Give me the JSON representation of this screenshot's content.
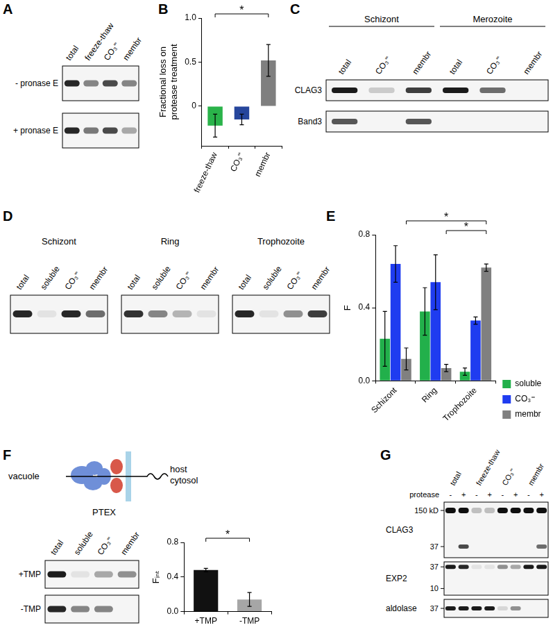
{
  "figure": {
    "panel_labels": [
      "A",
      "B",
      "C",
      "D",
      "E",
      "F",
      "G"
    ],
    "A": {
      "lanes": [
        "total",
        "freeze-thaw",
        "CO₃⁼",
        "membr"
      ],
      "rows": [
        {
          "label": "- pronase E",
          "bands": [
            0.9,
            0.5,
            0.75,
            0.5
          ]
        },
        {
          "label": "+ pronase E",
          "bands": [
            0.9,
            0.55,
            0.75,
            0.35
          ]
        }
      ]
    },
    "C": {
      "groups": [
        {
          "name": "Schizont",
          "lanes": [
            "total",
            "CO₃⁼",
            "membr"
          ]
        },
        {
          "name": "Merozoite",
          "lanes": [
            "total",
            "CO₃⁼",
            "membr"
          ]
        }
      ],
      "rows": [
        {
          "label": "CLAG3",
          "bands": [
            0.95,
            0.2,
            0.8,
            0.95,
            0.6,
            0
          ]
        },
        {
          "label": "Band3",
          "bands": [
            0.7,
            0,
            0.7,
            0,
            0,
            0
          ]
        }
      ]
    },
    "D": {
      "blots": [
        {
          "title": "Schizont",
          "lanes": [
            "total",
            "soluble",
            "CO₃⁼",
            "membr"
          ],
          "bands": [
            0.9,
            0.1,
            0.9,
            0.6
          ]
        },
        {
          "title": "Ring",
          "lanes": [
            "total",
            "soluble",
            "CO₃⁼",
            "membr"
          ],
          "bands": [
            0.85,
            0.5,
            0.3,
            0.1
          ]
        },
        {
          "title": "Trophozoite",
          "lanes": [
            "total",
            "soluble",
            "CO₃⁼",
            "membr"
          ],
          "bands": [
            0.9,
            0.1,
            0.45,
            0.8
          ]
        }
      ]
    },
    "F": {
      "diagram": {
        "left": "vacuole",
        "center": "PTEX",
        "right": [
          "host",
          "cytosol"
        ]
      },
      "lanes": [
        "total",
        "soluble",
        "CO₃⁼",
        "membr"
      ],
      "rows": [
        {
          "label": "+TMP",
          "bands": [
            0.95,
            0.1,
            0.35,
            0.45
          ]
        },
        {
          "label": "-TMP",
          "bands": [
            0.9,
            0.5,
            0.5,
            0
          ]
        }
      ]
    },
    "G": {
      "groups": [
        "total",
        "freeze-thaw",
        "CO₃⁼",
        "membr"
      ],
      "protease_label": "protease",
      "protease": [
        "-",
        "+",
        "-",
        "+",
        "-",
        "+",
        "-",
        "+"
      ],
      "rows": [
        {
          "label": "CLAG3",
          "markers": [
            {
              "label": "150 kD",
              "bands": [
                1,
                1,
                0.25,
                0.25,
                1,
                1,
                1,
                1
              ]
            },
            {
              "label": "37",
              "bands": [
                0,
                0.75,
                0,
                0,
                0,
                0,
                0,
                0.6
              ]
            }
          ]
        },
        {
          "label": "EXP2",
          "markers": [
            {
              "label": "37",
              "bands": [
                0.95,
                0.9,
                0.1,
                0.1,
                0.45,
                0.35,
                0.95,
                0.95
              ]
            },
            {
              "label": "10",
              "bands": [
                0,
                0,
                0,
                0,
                0,
                0,
                0,
                0
              ]
            }
          ]
        },
        {
          "label": "aldolase",
          "markers": [
            {
              "label": "37",
              "bands": [
                0.95,
                0.95,
                0.95,
                0.95,
                0.15,
                0.45,
                0,
                0
              ]
            }
          ]
        }
      ]
    }
  },
  "chart_data": [
    {
      "type": "bar",
      "categories": [
        "freeze-thaw",
        "CO₃⁼",
        "membr"
      ],
      "values": [
        -0.22,
        -0.15,
        0.52
      ],
      "errors": [
        0.13,
        0.06,
        0.18
      ],
      "colors": [
        "#2ab34a",
        "#26469c",
        "#7f7f7f"
      ],
      "ylabel": [
        "Fractional loss on",
        "protease treatment"
      ],
      "ylim": [
        -0.45,
        1.0
      ],
      "yticks": [
        0,
        0.5,
        {
          "value": 1,
          "label": "1.0"
        }
      ],
      "grid": false,
      "annotations": [
        {
          "text": "*",
          "between": [
            "freeze-thaw",
            "membr"
          ]
        }
      ]
    },
    {
      "type": "bar",
      "categories": [
        "Schizont",
        "Ring",
        "Trophozoite"
      ],
      "series": [
        {
          "name": "soluble",
          "color": "#22b04b",
          "values": [
            0.23,
            0.38,
            0.05
          ],
          "errors": [
            0.15,
            0.13,
            0.02
          ]
        },
        {
          "name": "CO₃⁼",
          "color": "#1f3cf0",
          "values": [
            0.64,
            0.54,
            0.33
          ],
          "errors": [
            0.1,
            0.15,
            0.02
          ]
        },
        {
          "name": "membr",
          "color": "#808080",
          "values": [
            0.12,
            0.07,
            0.62
          ],
          "errors": [
            0.06,
            0.02,
            0.02
          ]
        }
      ],
      "ylabel": "F",
      "ylim": [
        0,
        0.8
      ],
      "yticks": [
        {
          "value": 0,
          "label": "0.0"
        },
        0.4,
        0.8
      ],
      "grid": false,
      "legend": "lower right",
      "annotations": [
        {
          "text": "*",
          "between": [
            [
              "Schizont",
              "membr"
            ],
            [
              "Trophozoite",
              "membr"
            ]
          ]
        },
        {
          "text": "*",
          "between": [
            [
              "Ring",
              "membr"
            ],
            [
              "Trophozoite",
              "membr"
            ]
          ]
        }
      ]
    },
    {
      "type": "bar",
      "categories": [
        "+TMP",
        "-TMP"
      ],
      "values": [
        0.48,
        0.14
      ],
      "errors": [
        0.02,
        0.08
      ],
      "colors": [
        "#111111",
        "#a6a6a6"
      ],
      "ylabel": "Fᵢₙₜ",
      "ylim": [
        0,
        0.8
      ],
      "yticks": [
        {
          "value": 0,
          "label": "0.0"
        },
        0.4,
        0.8
      ],
      "grid": false,
      "annotations": [
        {
          "text": "*",
          "between": [
            "+TMP",
            "-TMP"
          ]
        }
      ]
    }
  ]
}
